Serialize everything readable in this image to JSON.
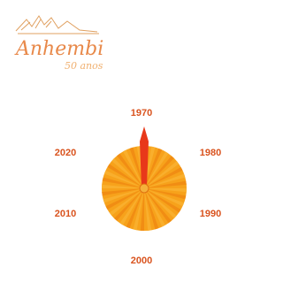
{
  "logo": {
    "title": "Anhembi",
    "subtitle": "50 anos"
  },
  "dial": {
    "labels": [
      "1970",
      "1980",
      "1990",
      "2000",
      "2010",
      "2020"
    ]
  }
}
